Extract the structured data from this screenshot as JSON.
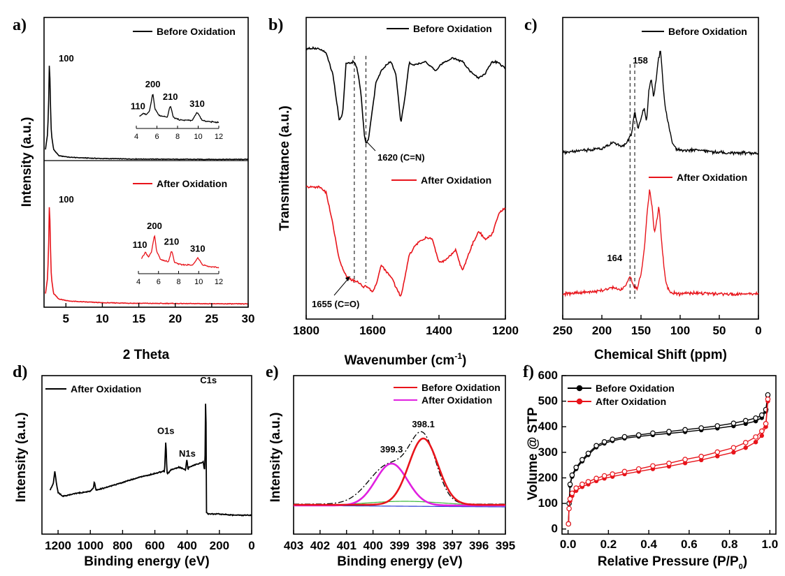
{
  "colors": {
    "before": "#000000",
    "after": "#e8141b",
    "fit_before": "#e8141b",
    "fit_after": "#e020e0",
    "background": "#2b3bd4",
    "envelope": "#3cb83c"
  },
  "chart_data": [
    {
      "panel": "a)",
      "type": "line",
      "xlabel": "2 Theta",
      "ylabel": "Intensity (a.u.)",
      "xlim": [
        2,
        30
      ],
      "xticks": [
        "5",
        "10",
        "15",
        "20",
        "25",
        "30"
      ],
      "legend": [
        "Before Oxidation",
        "After Oxidation"
      ],
      "legend_position": "right of each trace",
      "grid": false,
      "series": [
        {
          "name": "Before Oxidation",
          "x": [
            2.2,
            2.5,
            2.65,
            2.75,
            2.85,
            3.0,
            3.3,
            4,
            5.5,
            7,
            10,
            15,
            20,
            25,
            30
          ],
          "y": [
            10,
            25,
            60,
            100,
            60,
            25,
            10,
            4,
            2.5,
            2,
            1.2,
            0.8,
            0.6,
            0.5,
            0.5
          ]
        },
        {
          "name": "After Oxidation",
          "x": [
            2.2,
            2.5,
            2.65,
            2.75,
            2.85,
            3.0,
            3.3,
            4,
            5.5,
            7,
            10,
            15,
            20,
            25,
            30
          ],
          "y": [
            10,
            25,
            60,
            100,
            60,
            25,
            10,
            5,
            3,
            2.5,
            1.5,
            1,
            0.8,
            0.6,
            0.5
          ]
        }
      ],
      "peak_labels": [
        {
          "label": "100",
          "series": "Before Oxidation"
        },
        {
          "label": "100",
          "series": "After Oxidation"
        }
      ],
      "insets": [
        {
          "series": "Before Oxidation",
          "xlim": [
            4,
            12
          ],
          "xticks": [
            "4",
            "6",
            "8",
            "10",
            "12"
          ],
          "x": [
            4.3,
            4.7,
            5.0,
            5.3,
            5.6,
            5.8,
            6.2,
            7.0,
            7.3,
            7.6,
            8.2,
            9.4,
            9.9,
            10.4,
            11.2,
            12
          ],
          "y": [
            0.25,
            0.35,
            0.3,
            0.45,
            1.0,
            0.5,
            0.28,
            0.22,
            0.6,
            0.22,
            0.14,
            0.12,
            0.38,
            0.12,
            0.08,
            0.06
          ],
          "peaks": [
            {
              "label": "110",
              "x": 4.7
            },
            {
              "label": "200",
              "x": 5.6
            },
            {
              "label": "210",
              "x": 7.3
            },
            {
              "label": "310",
              "x": 9.9
            }
          ]
        },
        {
          "series": "After Oxidation",
          "xlim": [
            4,
            12
          ],
          "xticks": [
            "4",
            "6",
            "8",
            "10",
            "12"
          ],
          "x": [
            4.3,
            4.7,
            5.0,
            5.3,
            5.6,
            5.8,
            6.2,
            7.0,
            7.3,
            7.6,
            8.2,
            9.4,
            9.9,
            10.4,
            11.2,
            12
          ],
          "y": [
            0.3,
            0.5,
            0.35,
            0.5,
            1.0,
            0.55,
            0.28,
            0.22,
            0.55,
            0.2,
            0.14,
            0.12,
            0.35,
            0.12,
            0.08,
            0.06
          ],
          "peaks": [
            {
              "label": "110",
              "x": 4.7
            },
            {
              "label": "200",
              "x": 5.6
            },
            {
              "label": "210",
              "x": 7.3
            },
            {
              "label": "310",
              "x": 9.9
            }
          ]
        }
      ]
    },
    {
      "panel": "b)",
      "type": "line",
      "xlabel": "Wavenumber (cm",
      "xlabel_sup": "-1",
      "xlabel_close": ")",
      "ylabel": "Transmittance (a.u.)",
      "xlim": [
        1800,
        1200
      ],
      "xticks": [
        "1800",
        "1600",
        "1400",
        "1200"
      ],
      "legend": [
        "Before Oxidation",
        "After Oxidation"
      ],
      "grid": false,
      "series": [
        {
          "name": "Before Oxidation",
          "x": [
            1800,
            1760,
            1740,
            1720,
            1700,
            1690,
            1680,
            1665,
            1655,
            1645,
            1635,
            1625,
            1620,
            1612,
            1600,
            1590,
            1575,
            1560,
            1545,
            1530,
            1515,
            1505,
            1490,
            1470,
            1440,
            1410,
            1390,
            1360,
            1330,
            1300,
            1280,
            1260,
            1240,
            1220,
            1200
          ],
          "y": [
            0.95,
            0.95,
            0.9,
            0.7,
            0.22,
            0.3,
            0.8,
            0.8,
            0.82,
            0.72,
            0.5,
            0.08,
            0.0,
            0.05,
            0.35,
            0.6,
            0.72,
            0.78,
            0.82,
            0.7,
            0.2,
            0.4,
            0.8,
            0.78,
            0.82,
            0.72,
            0.8,
            0.85,
            0.82,
            0.7,
            0.65,
            0.7,
            0.82,
            0.8,
            0.75
          ]
        },
        {
          "name": "After Oxidation",
          "x": [
            1800,
            1760,
            1740,
            1720,
            1700,
            1680,
            1665,
            1655,
            1645,
            1630,
            1615,
            1600,
            1590,
            1575,
            1560,
            1545,
            1530,
            1515,
            1505,
            1490,
            1470,
            1440,
            1420,
            1400,
            1380,
            1350,
            1330,
            1320,
            1300,
            1280,
            1260,
            1240,
            1220,
            1200
          ],
          "y": [
            1.0,
            1.0,
            0.95,
            0.65,
            0.3,
            0.15,
            0.12,
            0.1,
            0.1,
            0.05,
            0.05,
            0.0,
            0.06,
            0.25,
            0.2,
            0.15,
            0.05,
            -0.05,
            0.1,
            0.35,
            0.45,
            0.52,
            0.5,
            0.28,
            0.3,
            0.4,
            0.2,
            0.28,
            0.45,
            0.58,
            0.5,
            0.55,
            0.75,
            0.8
          ]
        }
      ],
      "annotations": [
        {
          "label": "1620 (C=N)",
          "x": 1620,
          "series": "Before Oxidation"
        },
        {
          "label": "1655 (C=O)",
          "x": 1655,
          "series": "After Oxidation"
        }
      ],
      "reference_lines": [
        1655,
        1620
      ]
    },
    {
      "panel": "c)",
      "type": "line",
      "xlabel": "Chemical Shift (ppm)",
      "xlim": [
        250,
        0
      ],
      "xticks": [
        "250",
        "200",
        "150",
        "100",
        "50",
        "0"
      ],
      "legend": [
        "Before Oxidation",
        "After Oxidation"
      ],
      "grid": false,
      "series": [
        {
          "name": "Before Oxidation",
          "x": [
            250,
            230,
            200,
            185,
            175,
            168,
            162,
            158,
            154,
            150,
            146,
            143,
            140,
            137,
            134,
            131,
            128,
            125,
            122,
            119,
            115,
            110,
            105,
            95,
            80,
            60,
            40,
            20,
            0
          ],
          "y": [
            0.02,
            0.04,
            0.06,
            0.12,
            0.08,
            0.12,
            0.2,
            0.42,
            0.25,
            0.35,
            0.45,
            0.3,
            0.6,
            0.75,
            0.55,
            0.7,
            0.9,
            1.0,
            0.7,
            0.45,
            0.3,
            0.12,
            0.06,
            0.04,
            0.05,
            0.03,
            0.02,
            0.02,
            0.02
          ]
        },
        {
          "name": "After Oxidation",
          "x": [
            250,
            230,
            200,
            185,
            178,
            172,
            166,
            164,
            160,
            155,
            150,
            145,
            142,
            139,
            136,
            133,
            130,
            127,
            124,
            121,
            118,
            114,
            110,
            100,
            80,
            60,
            40,
            20,
            0
          ],
          "y": [
            0.02,
            0.03,
            0.05,
            0.08,
            0.06,
            0.08,
            0.15,
            0.2,
            0.1,
            0.06,
            0.2,
            0.5,
            0.8,
            1.0,
            0.85,
            0.6,
            0.7,
            0.85,
            0.55,
            0.3,
            0.12,
            0.05,
            0.03,
            0.02,
            0.03,
            0.02,
            0.02,
            0.02,
            0.02
          ]
        }
      ],
      "annotations": [
        {
          "label": "158",
          "x": 158
        },
        {
          "label": "164",
          "x": 164
        }
      ],
      "reference_lines": [
        164,
        158
      ]
    },
    {
      "panel": "d)",
      "type": "line",
      "xlabel": "Binding energy (eV)",
      "ylabel": "Intensity (a.u.)",
      "xlim": [
        1300,
        0
      ],
      "xticks": [
        "1200",
        "1000",
        "800",
        "600",
        "400",
        "200",
        "0"
      ],
      "legend": [
        "After Oxidation"
      ],
      "grid": false,
      "series": [
        {
          "name": "After Oxidation",
          "x": [
            1250,
            1230,
            1220,
            1210,
            1200,
            1170,
            1100,
            1000,
            980,
            975,
            965,
            900,
            800,
            700,
            600,
            545,
            540,
            532,
            525,
            520,
            500,
            450,
            410,
            402,
            399,
            395,
            390,
            350,
            300,
            292,
            288,
            285,
            283,
            280,
            270,
            250,
            200,
            100,
            0
          ],
          "y": [
            0.2,
            0.25,
            0.35,
            0.25,
            0.18,
            0.15,
            0.17,
            0.19,
            0.22,
            0.27,
            0.2,
            0.22,
            0.26,
            0.3,
            0.33,
            0.35,
            0.34,
            0.6,
            0.34,
            0.33,
            0.36,
            0.38,
            0.36,
            0.44,
            0.42,
            0.35,
            0.38,
            0.4,
            0.42,
            0.35,
            0.5,
            1.0,
            0.8,
            0.02,
            0.01,
            0.01,
            0.01,
            0.0,
            0.0
          ]
        }
      ],
      "annotations": [
        {
          "label": "O1s",
          "x": 532
        },
        {
          "label": "N1s",
          "x": 399
        },
        {
          "label": "C1s",
          "x": 285
        }
      ]
    },
    {
      "panel": "e)",
      "type": "line",
      "xlabel": "Binding energy (eV)",
      "ylabel": "Intensity (a.u.)",
      "xlim": [
        403,
        395
      ],
      "xticks": [
        "403",
        "402",
        "401",
        "400",
        "399",
        "398",
        "397",
        "396",
        "395"
      ],
      "legend": [
        "Before Oxidation",
        "After Oxidation"
      ],
      "grid": false,
      "fit_peaks": [
        {
          "name": "Before Oxidation",
          "center": 398.1,
          "height": 0.95,
          "sigma": 0.55,
          "baseline": 0.05
        },
        {
          "name": "After Oxidation",
          "center": 399.3,
          "height": 0.6,
          "sigma": 0.6,
          "baseline": 0.04
        }
      ],
      "annotations": [
        {
          "label": "398.1",
          "x": 398.1
        },
        {
          "label": "399.3",
          "x": 399.3
        }
      ]
    },
    {
      "panel": "f)",
      "type": "scatter",
      "xlabel": "Relative Pressure (P/P",
      "xlabel_sub": "0",
      "xlabel_close": ")",
      "ylabel": "Volume @ STP",
      "xlim": [
        -0.03,
        1.03
      ],
      "ylim": [
        -20,
        600
      ],
      "xticks": [
        "0.0",
        "0.2",
        "0.4",
        "0.6",
        "0.8",
        "1.0"
      ],
      "yticks": [
        "0",
        "100",
        "200",
        "300",
        "400",
        "500",
        "600"
      ],
      "legend": [
        "Before Oxidation",
        "After Oxidation"
      ],
      "legend_position": "top-left",
      "grid": false,
      "series": [
        {
          "name": "Before Oxidation",
          "x": [
            0.002,
            0.005,
            0.01,
            0.02,
            0.04,
            0.07,
            0.1,
            0.14,
            0.18,
            0.22,
            0.28,
            0.35,
            0.42,
            0.5,
            0.58,
            0.66,
            0.74,
            0.82,
            0.88,
            0.93,
            0.96,
            0.98,
            0.99
          ],
          "y": [
            20,
            100,
            170,
            205,
            235,
            265,
            290,
            320,
            335,
            345,
            355,
            362,
            368,
            374,
            380,
            387,
            394,
            403,
            412,
            422,
            435,
            460,
            520
          ]
        },
        {
          "name": "After Oxidation",
          "x": [
            0.002,
            0.005,
            0.01,
            0.02,
            0.04,
            0.07,
            0.1,
            0.14,
            0.18,
            0.22,
            0.28,
            0.35,
            0.42,
            0.5,
            0.58,
            0.66,
            0.74,
            0.82,
            0.88,
            0.93,
            0.96,
            0.98,
            0.99
          ],
          "y": [
            20,
            80,
            110,
            130,
            150,
            165,
            175,
            188,
            198,
            205,
            215,
            225,
            235,
            245,
            258,
            270,
            285,
            300,
            318,
            340,
            365,
            400,
            500
          ]
        }
      ],
      "desorption_offsets": [
        0,
        0,
        8,
        10,
        10,
        10,
        10,
        10,
        10,
        10,
        10,
        10,
        12,
        12,
        14,
        14,
        16,
        18,
        20,
        20,
        18,
        12,
        8
      ]
    }
  ]
}
